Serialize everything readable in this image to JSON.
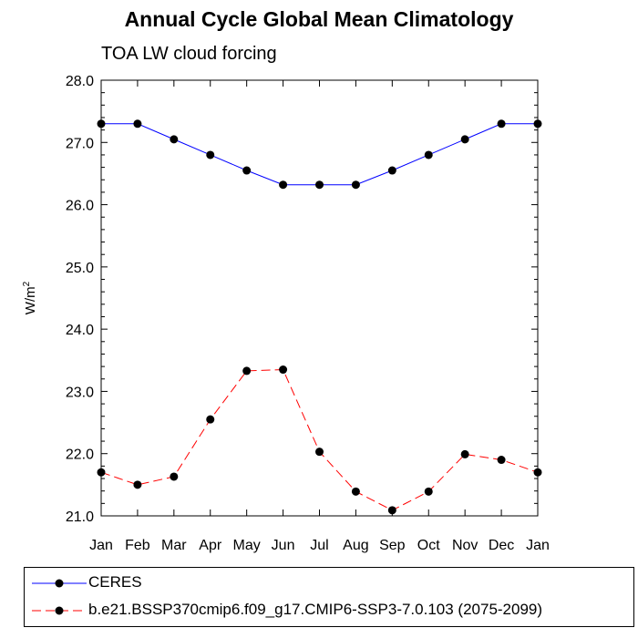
{
  "chart_data": {
    "type": "line",
    "title": "Annual Cycle Global Mean Climatology",
    "subtitle": "TOA LW cloud forcing",
    "ylabel": "W/m²",
    "ylabel_base": "W/m",
    "ylabel_sup": "2",
    "xlabel": "",
    "categories": [
      "Jan",
      "Feb",
      "Mar",
      "Apr",
      "May",
      "Jun",
      "Jul",
      "Aug",
      "Sep",
      "Oct",
      "Nov",
      "Dec",
      "Jan"
    ],
    "ylim": [
      21.0,
      28.0
    ],
    "yticks": [
      "21.0",
      "22.0",
      "23.0",
      "24.0",
      "25.0",
      "26.0",
      "27.0",
      "28.0"
    ],
    "grid": false,
    "legend_position": "bottom",
    "series": [
      {
        "name": "CERES",
        "color": "#0000ff",
        "line_style": "solid",
        "marker": "filled-circle",
        "values": [
          27.3,
          27.3,
          27.05,
          26.8,
          26.55,
          26.32,
          26.32,
          26.32,
          26.55,
          26.8,
          27.05,
          27.3,
          27.3
        ]
      },
      {
        "name": "b.e21.BSSP370cmip6.f09_g17.CMIP6-SSP3-7.0.103 (2075-2099)",
        "color": "#ff0000",
        "line_style": "dashed",
        "marker": "filled-circle",
        "values": [
          21.7,
          21.5,
          21.63,
          22.55,
          23.33,
          23.35,
          22.03,
          21.39,
          21.09,
          21.39,
          21.99,
          21.9,
          21.7
        ]
      }
    ]
  }
}
